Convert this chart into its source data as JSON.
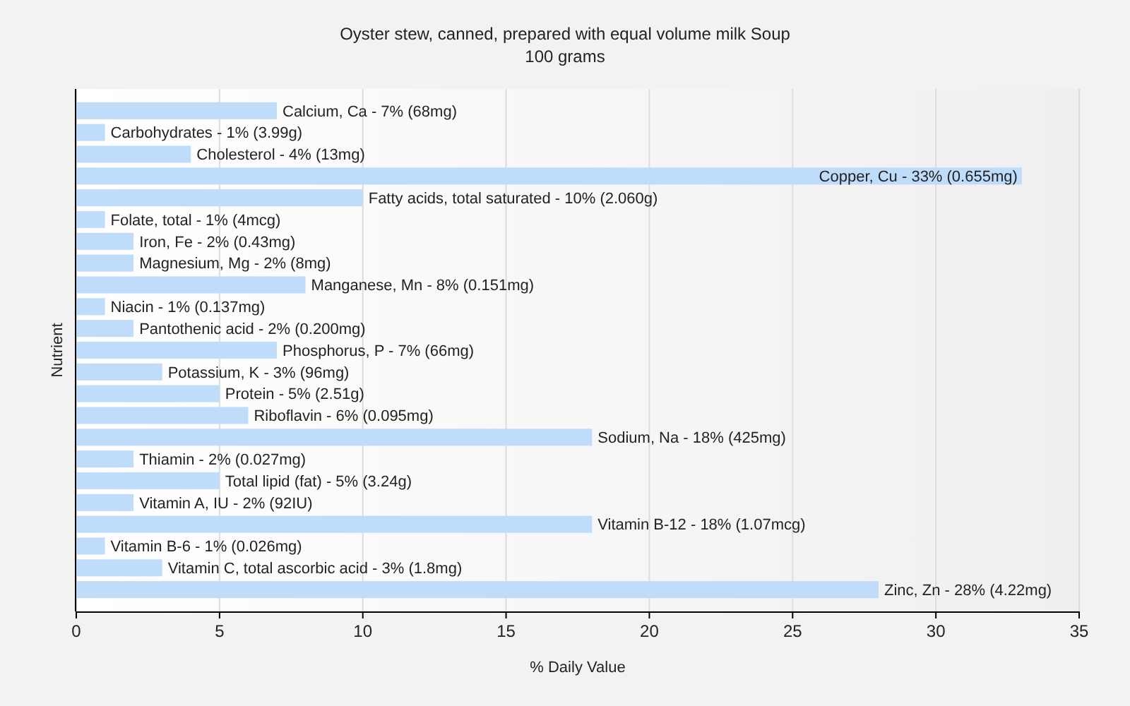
{
  "chart_data": {
    "type": "bar",
    "orientation": "horizontal",
    "title": "Oyster stew, canned, prepared with equal volume milk Soup",
    "subtitle": "100 grams",
    "xlabel": "% Daily Value",
    "ylabel": "Nutrient",
    "categories": [
      "Calcium, Ca - 7% (68mg)",
      "Carbohydrates - 1% (3.99g)",
      "Cholesterol - 4% (13mg)",
      "Copper, Cu - 33% (0.655mg)",
      "Fatty acids, total saturated - 10% (2.060g)",
      "Folate, total - 1% (4mcg)",
      "Iron, Fe - 2% (0.43mg)",
      "Magnesium, Mg - 2% (8mg)",
      "Manganese, Mn - 8% (0.151mg)",
      "Niacin - 1% (0.137mg)",
      "Pantothenic acid - 2% (0.200mg)",
      "Phosphorus, P - 7% (66mg)",
      "Potassium, K - 3% (96mg)",
      "Protein - 5% (2.51g)",
      "Riboflavin - 6% (0.095mg)",
      "Sodium, Na - 18% (425mg)",
      "Thiamin - 2% (0.027mg)",
      "Total lipid (fat) - 5% (3.24g)",
      "Vitamin A, IU - 2% (92IU)",
      "Vitamin B-12 - 18% (1.07mcg)",
      "Vitamin B-6 - 1% (0.026mg)",
      "Vitamin C, total ascorbic acid - 3% (1.8mg)",
      "Zinc, Zn - 28% (4.22mg)"
    ],
    "values": [
      7,
      1,
      4,
      33,
      10,
      1,
      2,
      2,
      8,
      1,
      2,
      7,
      3,
      5,
      6,
      18,
      2,
      5,
      2,
      18,
      1,
      3,
      28
    ],
    "color": "#bfdcfb",
    "xlim": [
      0,
      35
    ],
    "xticks": [
      0,
      5,
      10,
      15,
      20,
      25,
      30,
      35
    ],
    "grid": "x"
  }
}
